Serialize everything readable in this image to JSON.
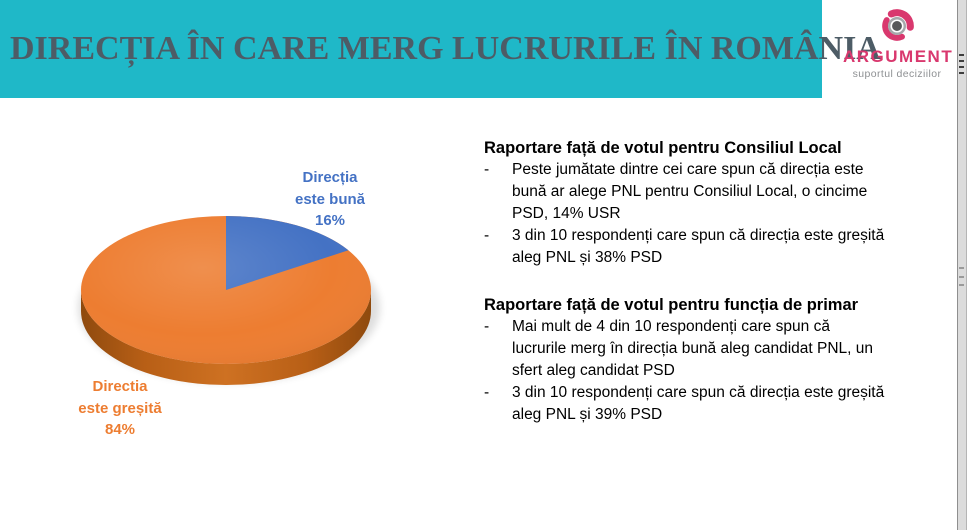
{
  "header": {
    "title": "DIRECȚIA ÎN CARE MERG LUCRURILE ÎN ROMÂNIA",
    "background": "#1FB8C8",
    "title_color": "#4D5C66"
  },
  "logo": {
    "name": "ARGUMENT",
    "tagline": "suportul deciziilor",
    "brand_color": "#D9386E",
    "icon": "target-rings-icon"
  },
  "chart_data": {
    "type": "pie",
    "style": "3d",
    "title": "Direcția în care merg lucrurile în România",
    "legend_position": "data-labels",
    "slices": [
      {
        "label": "Direcția este bună",
        "value": 16,
        "color": "#4472C4",
        "label_lines": "Direcția\neste bună\n16%"
      },
      {
        "label": "Directia este greșită",
        "value": 84,
        "color": "#ED7D31",
        "label_lines": "Directia\neste greșită\n84%"
      }
    ]
  },
  "commentary": {
    "bullet_marker": "-",
    "sections": [
      {
        "heading": "Raportare față de votul pentru Consiliul Local",
        "bullets": [
          "Peste jumătate dintre cei care spun că direcția este\nbună ar alege PNL pentru Consiliul Local, o cincime\nPSD, 14% USR",
          "3 din 10 respondenți care spun că direcția este greșită\naleg PNL și 38% PSD"
        ]
      },
      {
        "heading": "Raportare față de votul pentru funcția de primar",
        "bullets": [
          "Mai mult de 4 din 10 respondenți care spun că\nlucrurile merg în direcția bună aleg candidat PNL, un\nsfert aleg candidat PSD",
          "3 din 10 respondenți care spun că direcția este greșită\naleg PNL și 39% PSD"
        ]
      }
    ]
  }
}
